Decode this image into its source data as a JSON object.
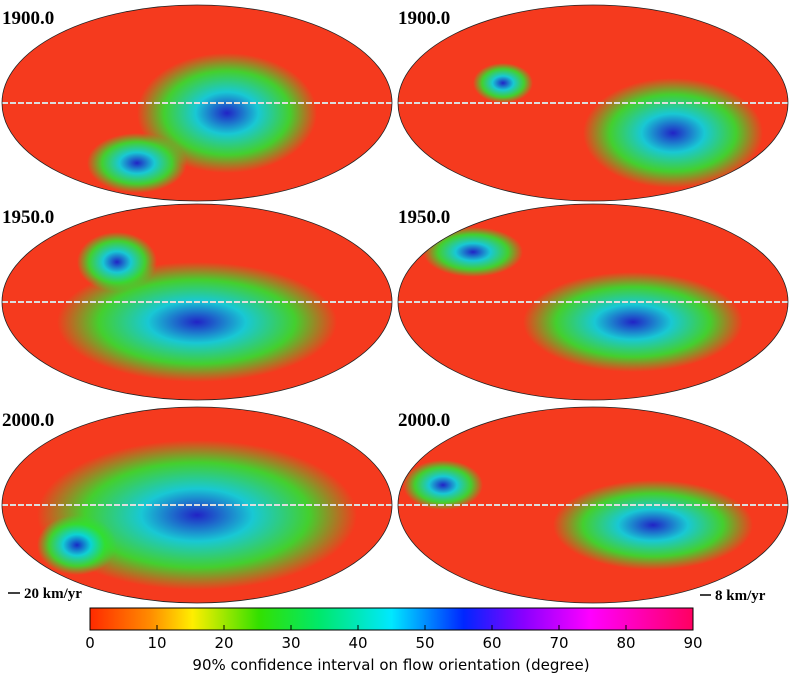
{
  "panels": [
    {
      "label": "1900.0"
    },
    {
      "label": "1900.0"
    },
    {
      "label": "1950.0"
    },
    {
      "label": "1950.0"
    },
    {
      "label": "2000.0"
    },
    {
      "label": "2000.0"
    }
  ],
  "scale_left": "20 km/yr",
  "scale_right": "8 km/yr",
  "colorbar": {
    "label": "90% confidence interval on flow orientation (degree)",
    "lim": [
      0,
      90
    ],
    "ticks": [
      0,
      10,
      20,
      30,
      40,
      50,
      60,
      70,
      80,
      90
    ]
  }
}
